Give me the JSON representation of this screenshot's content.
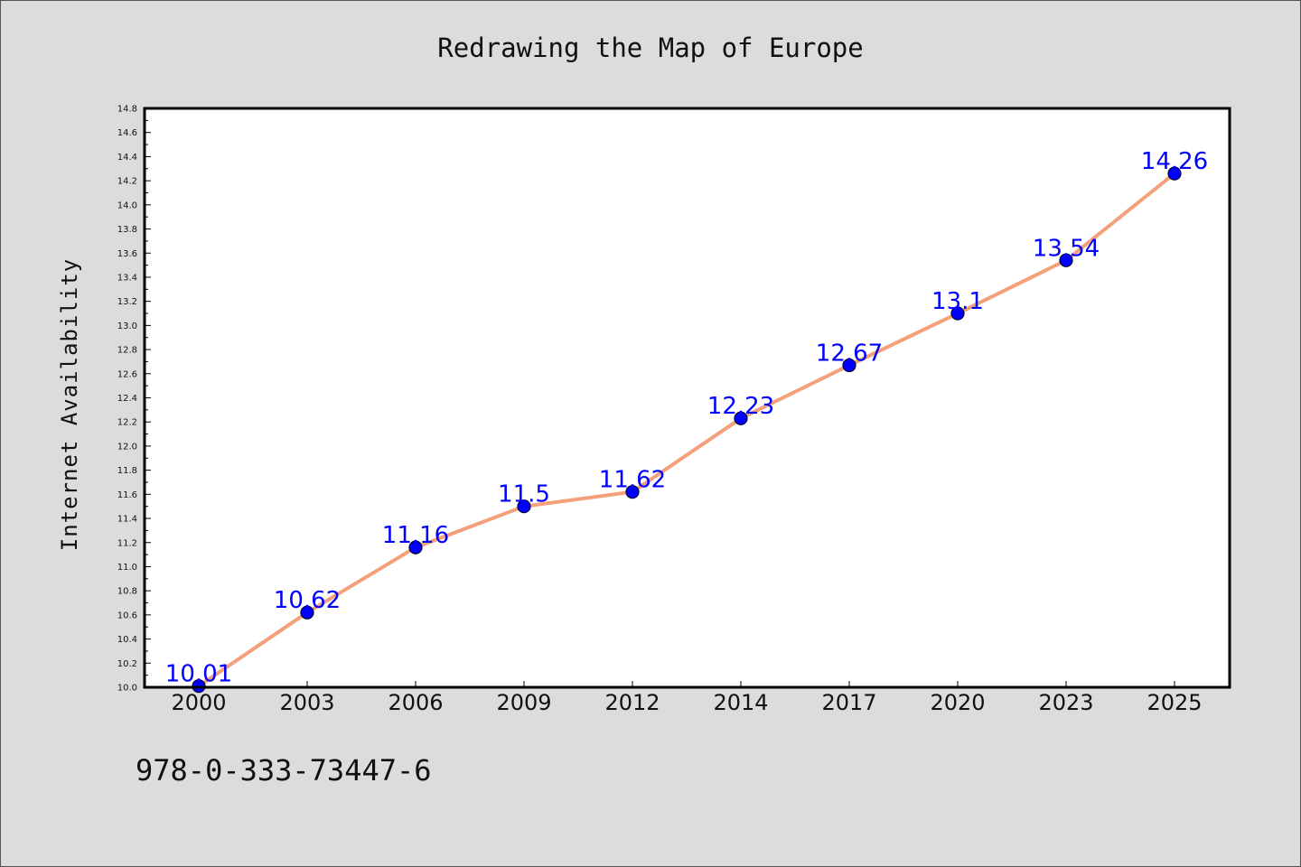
{
  "chart_data": {
    "type": "line",
    "title": "Redrawing the Map of Europe",
    "xlabel": "",
    "ylabel": "Internet Availability",
    "categories": [
      "2000",
      "2003",
      "2006",
      "2009",
      "2012",
      "2014",
      "2017",
      "2020",
      "2023",
      "2025"
    ],
    "series": [
      {
        "values": [
          10.01,
          10.62,
          11.16,
          11.5,
          11.62,
          12.23,
          12.67,
          13.1,
          13.54,
          14.26
        ],
        "data_labels": [
          "10.01",
          "10.62",
          "11.16",
          "11.5",
          "11.62",
          "12.23",
          "12.67",
          "13.1",
          "13.54",
          "14.26"
        ]
      }
    ],
    "ylim": [
      10.0,
      14.8
    ],
    "yticks": [
      "10.0",
      "10.2",
      "10.4",
      "10.6",
      "10.8",
      "11.0",
      "11.2",
      "11.4",
      "11.6",
      "11.8",
      "12.0",
      "12.2",
      "12.4",
      "12.6",
      "12.8",
      "13.0",
      "13.2",
      "13.4",
      "13.6",
      "13.8",
      "14.0",
      "14.2",
      "14.4",
      "14.6",
      "14.8"
    ],
    "grid": false,
    "legend": "none",
    "colors": {
      "line": "#f4a07a",
      "marker_fill": "#0000ff",
      "marker_edge": "#000033",
      "data_label": "#0000ff",
      "background": "#dcdcdc",
      "plot_background": "#ffffff"
    }
  },
  "footer": {
    "isbn": "978-0-333-73447-6"
  }
}
